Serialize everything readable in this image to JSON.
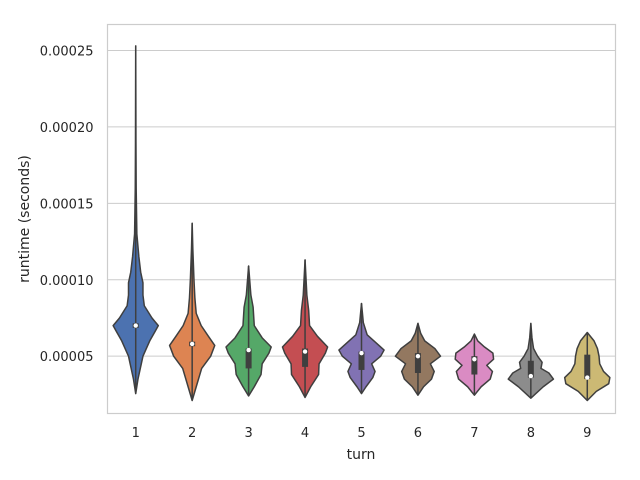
{
  "chart_data": {
    "type": "violin",
    "xlabel": "turn",
    "ylabel": "runtime (seconds)",
    "ylim": [
      1.25e-05,
      0.000267
    ],
    "grid": true,
    "yticks": [
      5e-05,
      0.0001,
      0.00015,
      0.0002,
      0.00025
    ],
    "ytick_labels": [
      "0.00005",
      "0.00010",
      "0.00015",
      "0.00020",
      "0.00025"
    ],
    "categories": [
      "1",
      "2",
      "3",
      "4",
      "5",
      "6",
      "7",
      "8",
      "9"
    ],
    "colors": [
      "#4c72b0",
      "#dd8452",
      "#55a868",
      "#c44e52",
      "#8172b3",
      "#937860",
      "#da8bc3",
      "#8c8c8c",
      "#ccb974"
    ],
    "violins": [
      {
        "min": 2.55e-05,
        "max": 0.000253,
        "q1": 6.85e-05,
        "median": 7e-05,
        "q3": 7.15e-05,
        "profile": [
          [
            2.55e-05,
            0
          ],
          [
            3.5e-05,
            0.1
          ],
          [
            5e-05,
            0.32
          ],
          [
            6e-05,
            0.62
          ],
          [
            6.6e-05,
            0.85
          ],
          [
            7e-05,
            1.0
          ],
          [
            7.5e-05,
            0.72
          ],
          [
            8.3e-05,
            0.38
          ],
          [
            9e-05,
            0.32
          ],
          [
            9.8e-05,
            0.32
          ],
          [
            0.000105,
            0.22
          ],
          [
            0.000115,
            0.14
          ],
          [
            0.00013,
            0.05
          ],
          [
            0.00016,
            0.02
          ],
          [
            0.00019,
            0.01
          ],
          [
            0.000253,
            0
          ]
        ]
      },
      {
        "min": 2.1e-05,
        "max": 0.000137,
        "q1": 5.65e-05,
        "median": 5.8e-05,
        "q3": 5.95e-05,
        "profile": [
          [
            2.1e-05,
            0
          ],
          [
            3e-05,
            0.18
          ],
          [
            4.2e-05,
            0.42
          ],
          [
            5e-05,
            0.82
          ],
          [
            5.7e-05,
            1.0
          ],
          [
            6.3e-05,
            0.72
          ],
          [
            7e-05,
            0.4
          ],
          [
            7.8e-05,
            0.18
          ],
          [
            8.8e-05,
            0.12
          ],
          [
            0.0001,
            0.08
          ],
          [
            0.00012,
            0.03
          ],
          [
            0.000137,
            0
          ]
        ]
      },
      {
        "min": 2.4e-05,
        "max": 0.000109,
        "q1": 4.2e-05,
        "median": 5.4e-05,
        "q3": 5.5e-05,
        "profile": [
          [
            2.4e-05,
            0
          ],
          [
            3e-05,
            0.25
          ],
          [
            3.8e-05,
            0.55
          ],
          [
            4.5e-05,
            0.6
          ],
          [
            5.2e-05,
            0.9
          ],
          [
            5.6e-05,
            1.0
          ],
          [
            6.2e-05,
            0.6
          ],
          [
            7e-05,
            0.25
          ],
          [
            8.2e-05,
            0.2
          ],
          [
            9e-05,
            0.1
          ],
          [
            0.000109,
            0
          ]
        ]
      },
      {
        "min": 2.3e-05,
        "max": 0.000113,
        "q1": 4.3e-05,
        "median": 5.3e-05,
        "q3": 5.5e-05,
        "profile": [
          [
            2.3e-05,
            0
          ],
          [
            3e-05,
            0.25
          ],
          [
            3.8e-05,
            0.6
          ],
          [
            4.5e-05,
            0.62
          ],
          [
            5.2e-05,
            0.9
          ],
          [
            5.6e-05,
            1.0
          ],
          [
            6.3e-05,
            0.55
          ],
          [
            7e-05,
            0.2
          ],
          [
            8e-05,
            0.16
          ],
          [
            9e-05,
            0.08
          ],
          [
            0.000113,
            0
          ]
        ]
      },
      {
        "min": 2.55e-05,
        "max": 8.45e-05,
        "q1": 4.1e-05,
        "median": 5.2e-05,
        "q3": 5.3e-05,
        "profile": [
          [
            2.55e-05,
            0
          ],
          [
            3e-05,
            0.2
          ],
          [
            3.6e-05,
            0.5
          ],
          [
            4e-05,
            0.6
          ],
          [
            4.5e-05,
            0.45
          ],
          [
            5e-05,
            0.85
          ],
          [
            5.4e-05,
            1.0
          ],
          [
            5.8e-05,
            0.7
          ],
          [
            6.4e-05,
            0.25
          ],
          [
            7.2e-05,
            0.08
          ],
          [
            8.45e-05,
            0
          ]
        ]
      },
      {
        "min": 2.45e-05,
        "max": 7.15e-05,
        "q1": 3.9e-05,
        "median": 5e-05,
        "q3": 5.2e-05,
        "profile": [
          [
            2.45e-05,
            0
          ],
          [
            3e-05,
            0.25
          ],
          [
            3.5e-05,
            0.6
          ],
          [
            4e-05,
            0.72
          ],
          [
            4.5e-05,
            0.55
          ],
          [
            5e-05,
            1.0
          ],
          [
            5.5e-05,
            0.75
          ],
          [
            6e-05,
            0.3
          ],
          [
            6.5e-05,
            0.12
          ],
          [
            7.15e-05,
            0
          ]
        ]
      },
      {
        "min": 2.45e-05,
        "max": 6.45e-05,
        "q1": 3.8e-05,
        "median": 4.8e-05,
        "q3": 5e-05,
        "profile": [
          [
            2.45e-05,
            0
          ],
          [
            3e-05,
            0.3
          ],
          [
            3.5e-05,
            0.7
          ],
          [
            4e-05,
            0.8
          ],
          [
            4.4e-05,
            0.55
          ],
          [
            4.8e-05,
            0.85
          ],
          [
            5.2e-05,
            0.82
          ],
          [
            5.6e-05,
            0.45
          ],
          [
            6e-05,
            0.15
          ],
          [
            6.45e-05,
            0
          ]
        ]
      },
      {
        "min": 2.25e-05,
        "max": 7.15e-05,
        "q1": 3.6e-05,
        "median": 3.7e-05,
        "q3": 4.7e-05,
        "profile": [
          [
            2.25e-05,
            0
          ],
          [
            3e-05,
            0.55
          ],
          [
            3.5e-05,
            1.0
          ],
          [
            3.9e-05,
            0.8
          ],
          [
            4.2e-05,
            0.45
          ],
          [
            4.6e-05,
            0.5
          ],
          [
            5e-05,
            0.3
          ],
          [
            5.5e-05,
            0.12
          ],
          [
            6.2e-05,
            0.05
          ],
          [
            7.15e-05,
            0
          ]
        ]
      },
      {
        "min": 2.1e-05,
        "max": 6.55e-05,
        "q1": 3.5e-05,
        "median": 3.6e-05,
        "q3": 5.1e-05,
        "profile": [
          [
            2.1e-05,
            0
          ],
          [
            2.7e-05,
            0.4
          ],
          [
            3.2e-05,
            0.95
          ],
          [
            3.6e-05,
            1.0
          ],
          [
            4e-05,
            0.72
          ],
          [
            4.5e-05,
            0.55
          ],
          [
            5e-05,
            0.52
          ],
          [
            5.5e-05,
            0.45
          ],
          [
            6e-05,
            0.3
          ],
          [
            6.55e-05,
            0
          ]
        ]
      }
    ]
  }
}
